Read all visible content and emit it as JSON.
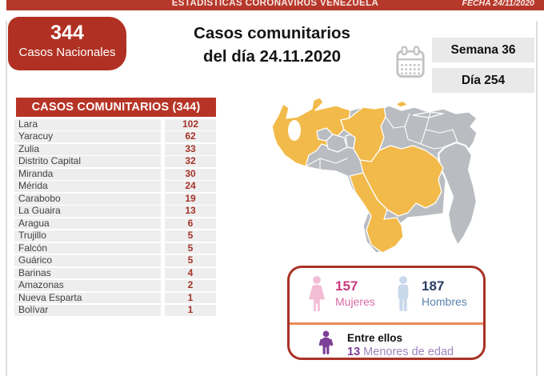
{
  "topbar": {
    "title": "ESTADÍSTICAS CORONAVIRUS VENEZUELA",
    "date": "FECHA 24/11/2020"
  },
  "national_box": {
    "count": "344",
    "label": "Casos Nacionales"
  },
  "main_title": {
    "line1": "Casos comunitarios",
    "line2": "del día 24.11.2020"
  },
  "period": {
    "week": "Semana 36",
    "day": "Día 254"
  },
  "cases_table": {
    "header": "CASOS COMUNITARIOS (344)",
    "rows": [
      {
        "state": "Lara",
        "value": "102"
      },
      {
        "state": "Yaracuy",
        "value": "62"
      },
      {
        "state": "Zulia",
        "value": "33"
      },
      {
        "state": "Distrito Capital",
        "value": "32"
      },
      {
        "state": "Miranda",
        "value": "30"
      },
      {
        "state": "Mérida",
        "value": "24"
      },
      {
        "state": "Carabobo",
        "value": "19"
      },
      {
        "state": "La Guaira",
        "value": "13"
      },
      {
        "state": "Aragua",
        "value": "6"
      },
      {
        "state": "Trujillo",
        "value": "5"
      },
      {
        "state": "Falcón",
        "value": "5"
      },
      {
        "state": "Guárico",
        "value": "5"
      },
      {
        "state": "Barinas",
        "value": "4"
      },
      {
        "state": "Amazonas",
        "value": "2"
      },
      {
        "state": "Nueva Esparta",
        "value": "1"
      },
      {
        "state": "Bolívar",
        "value": "1"
      }
    ]
  },
  "demographics": {
    "women": {
      "count": "157",
      "label": "Mujeres"
    },
    "men": {
      "count": "187",
      "label": "Hombres"
    },
    "minors": {
      "intro": "Entre ellos",
      "count": "13",
      "label": "Menores de edad"
    }
  },
  "icons": {
    "calendar": "calendar-icon",
    "woman": "woman-icon",
    "man": "man-icon",
    "child": "child-icon",
    "map": "venezuela-map"
  },
  "colors": {
    "red": "#b5382a",
    "box_red": "#b03123",
    "hdr_red": "#b63426",
    "num_red": "#a43328",
    "row_gray": "#eeeeee",
    "period_gray": "#e9e9e9",
    "map_yellow": "#f2ba4a",
    "map_gray": "#b9bdc1",
    "pink": "#c9397e",
    "pink_light": "#d86ca6",
    "icon_pink": "#f3bcd5",
    "navy": "#2b3e64",
    "blue": "#5b82ad",
    "icon_blue": "#c9d8ea",
    "purple": "#7d3f98",
    "purple_light": "#a184bc",
    "orange": "#e98a5a",
    "border_red": "#a93226"
  },
  "chart_data": {
    "type": "table",
    "title": "CASOS COMUNITARIOS (344)",
    "date": "24.11.2020",
    "categories": [
      "Lara",
      "Yaracuy",
      "Zulia",
      "Distrito Capital",
      "Miranda",
      "Mérida",
      "Carabobo",
      "La Guaira",
      "Aragua",
      "Trujillo",
      "Falcón",
      "Guárico",
      "Barinas",
      "Amazonas",
      "Nueva Esparta",
      "Bolívar"
    ],
    "values": [
      102,
      62,
      33,
      32,
      30,
      24,
      19,
      13,
      6,
      5,
      5,
      5,
      4,
      2,
      1,
      1
    ],
    "annotations": {
      "casos_nacionales": 344,
      "semana": 36,
      "dia": 254,
      "mujeres": 157,
      "hombres": 187,
      "menores_de_edad": 13
    },
    "map": {
      "highlighted_fill": "#f2ba4a",
      "other_fill": "#b9bdc1"
    }
  }
}
